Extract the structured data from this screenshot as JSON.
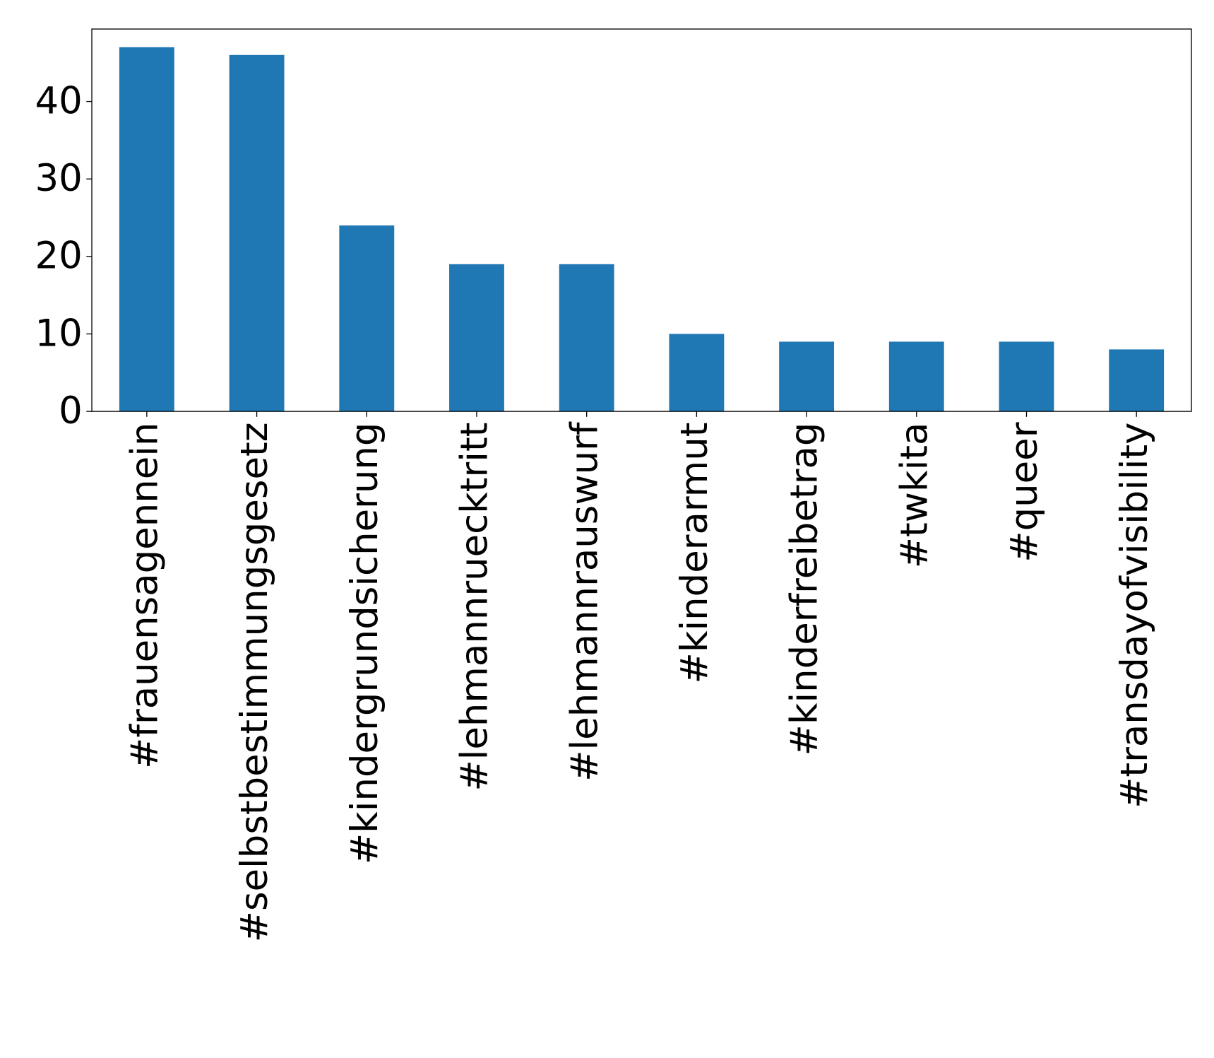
{
  "chart_data": {
    "type": "bar",
    "categories": [
      "#frauensagennein",
      "#selbstbestimmungsgesetz",
      "#kindergrundsicherung",
      "#lehmannruecktritt",
      "#lehmannrauswurf",
      "#kinderarmut",
      "#kinderfreibetrag",
      "#twkita",
      "#queer",
      "#transdayofvisibility"
    ],
    "values": [
      47,
      46,
      24,
      19,
      19,
      10,
      9,
      9,
      9,
      8
    ],
    "color": "#1f77b4",
    "ylim": [
      0,
      49.35
    ],
    "yticks": [
      0,
      10,
      20,
      30,
      40
    ],
    "grid": false
  }
}
